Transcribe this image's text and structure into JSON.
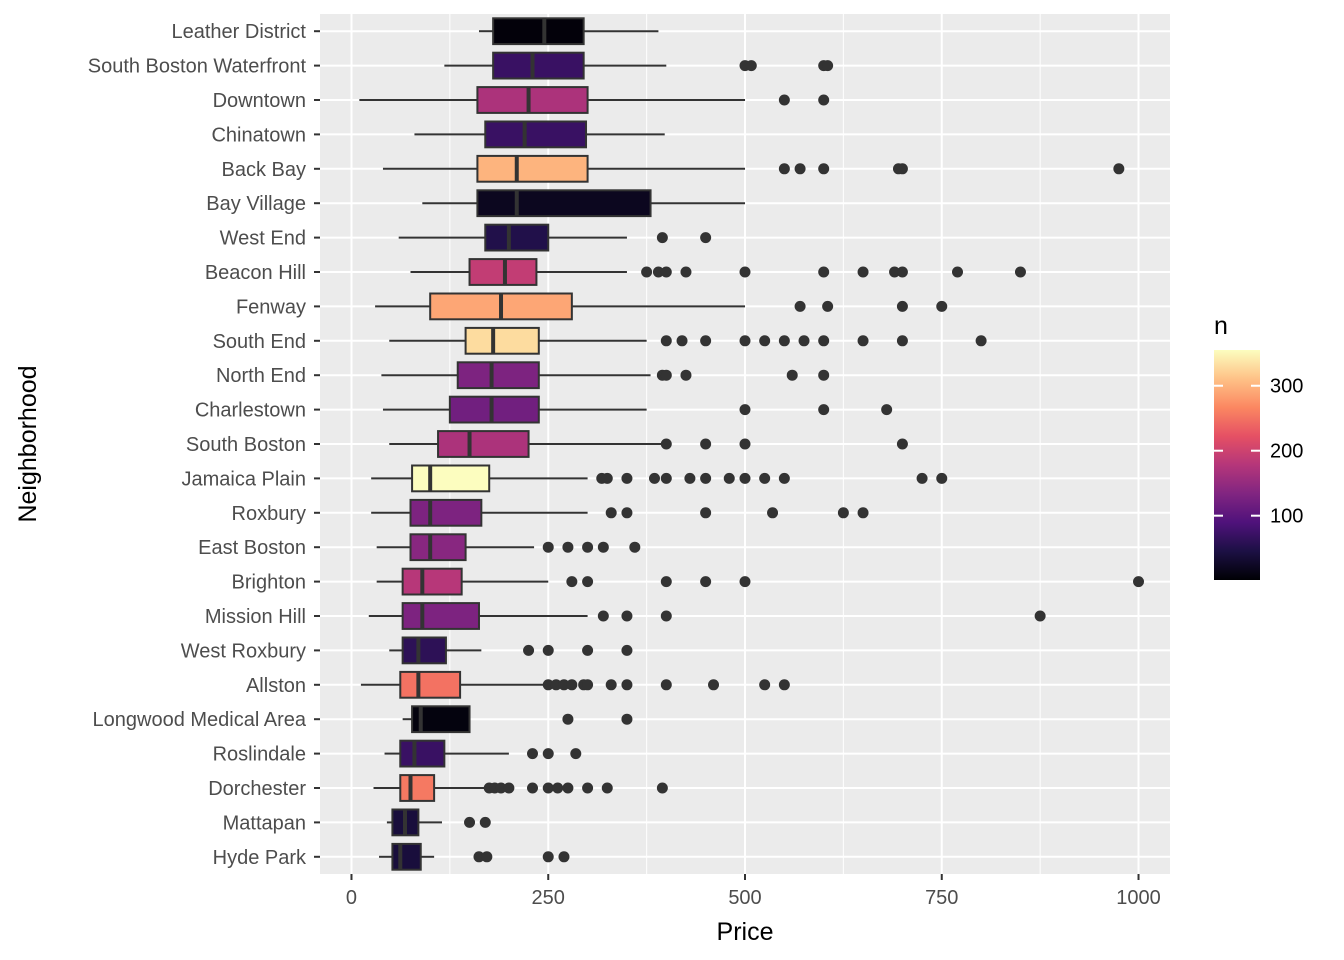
{
  "chart_data": {
    "type": "boxplot",
    "xlabel": "Price",
    "ylabel": "Neighborhood",
    "xlim": [
      -40,
      1040
    ],
    "x_ticks": [
      0,
      250,
      500,
      750,
      1000
    ],
    "x_tick_labels": [
      "0",
      "250",
      "500",
      "750",
      "1000"
    ],
    "grid": true,
    "legend": {
      "title": "n",
      "placement": "right",
      "min": 1,
      "max": 355,
      "ticks": [
        100,
        200,
        300
      ],
      "tick_labels": [
        "100",
        "200",
        "300"
      ],
      "colors": [
        "#000004",
        "#1c1044",
        "#4f127b",
        "#812581",
        "#b5367a",
        "#e55064",
        "#fb8761",
        "#fec287",
        "#fcfdbf"
      ]
    },
    "box_edge_color": "#333333",
    "outlier_color": "#333333",
    "categories": [
      "Leather District",
      "South Boston Waterfront",
      "Downtown",
      "Chinatown",
      "Back Bay",
      "Bay Village",
      "West End",
      "Beacon Hill",
      "Fenway",
      "South End",
      "North End",
      "Charlestown",
      "South Boston",
      "Jamaica Plain",
      "Roxbury",
      "East Boston",
      "Brighton",
      "Mission Hill",
      "West Roxbury",
      "Allston",
      "Longwood Medical Area",
      "Roslindale",
      "Dorchester",
      "Mattapan",
      "Hyde Park"
    ],
    "boxes": [
      {
        "name": "Leather District",
        "whisker_low": 162,
        "q1": 180,
        "median": 245,
        "q3": 295,
        "whisker_high": 390,
        "n": 5,
        "outliers": []
      },
      {
        "name": "South Boston Waterfront",
        "whisker_low": 118,
        "q1": 180,
        "median": 230,
        "q3": 295,
        "whisker_high": 400,
        "n": 70,
        "outliers": [
          500,
          508,
          600,
          605
        ]
      },
      {
        "name": "Downtown",
        "whisker_low": 10,
        "q1": 160,
        "median": 225,
        "q3": 300,
        "whisker_high": 500,
        "n": 170,
        "outliers": [
          550,
          600
        ]
      },
      {
        "name": "Chinatown",
        "whisker_low": 80,
        "q1": 170,
        "median": 220,
        "q3": 298,
        "whisker_high": 398,
        "n": 70,
        "outliers": []
      },
      {
        "name": "Back Bay",
        "whisker_low": 40,
        "q1": 160,
        "median": 210,
        "q3": 300,
        "whisker_high": 500,
        "n": 300,
        "outliers": [
          550,
          570,
          600,
          695,
          700,
          975
        ]
      },
      {
        "name": "Bay Village",
        "whisker_low": 90,
        "q1": 160,
        "median": 210,
        "q3": 380,
        "whisker_high": 500,
        "n": 20,
        "outliers": []
      },
      {
        "name": "West End",
        "whisker_low": 60,
        "q1": 170,
        "median": 200,
        "q3": 250,
        "whisker_high": 350,
        "n": 50,
        "outliers": [
          395,
          450
        ]
      },
      {
        "name": "Beacon Hill",
        "whisker_low": 75,
        "q1": 150,
        "median": 195,
        "q3": 235,
        "whisker_high": 350,
        "n": 190,
        "outliers": [
          375,
          390,
          400,
          425,
          500,
          600,
          650,
          690,
          700,
          770,
          850
        ]
      },
      {
        "name": "Fenway",
        "whisker_low": 30,
        "q1": 100,
        "median": 190,
        "q3": 280,
        "whisker_high": 500,
        "n": 290,
        "outliers": [
          570,
          605,
          700,
          750
        ]
      },
      {
        "name": "South End",
        "whisker_low": 48,
        "q1": 145,
        "median": 180,
        "q3": 238,
        "whisker_high": 375,
        "n": 330,
        "outliers": [
          400,
          420,
          450,
          500,
          525,
          550,
          575,
          600,
          650,
          700,
          800
        ]
      },
      {
        "name": "North End",
        "whisker_low": 38,
        "q1": 135,
        "median": 178,
        "q3": 238,
        "whisker_high": 380,
        "n": 130,
        "outliers": [
          395,
          400,
          425,
          560,
          600
        ]
      },
      {
        "name": "Charlestown",
        "whisker_low": 40,
        "q1": 125,
        "median": 178,
        "q3": 238,
        "whisker_high": 375,
        "n": 120,
        "outliers": [
          500,
          600,
          680
        ]
      },
      {
        "name": "South Boston",
        "whisker_low": 48,
        "q1": 110,
        "median": 150,
        "q3": 225,
        "whisker_high": 400,
        "n": 170,
        "outliers": [
          400,
          450,
          500,
          700
        ]
      },
      {
        "name": "Jamaica Plain",
        "whisker_low": 25,
        "q1": 77,
        "median": 100,
        "q3": 175,
        "whisker_high": 300,
        "n": 355,
        "outliers": [
          318,
          325,
          350,
          385,
          400,
          430,
          450,
          480,
          500,
          525,
          550,
          725,
          750
        ]
      },
      {
        "name": "Roxbury",
        "whisker_low": 25,
        "q1": 75,
        "median": 100,
        "q3": 165,
        "whisker_high": 300,
        "n": 130,
        "outliers": [
          330,
          350,
          450,
          535,
          625,
          650
        ]
      },
      {
        "name": "East Boston",
        "whisker_low": 32,
        "q1": 75,
        "median": 100,
        "q3": 145,
        "whisker_high": 232,
        "n": 140,
        "outliers": [
          250,
          275,
          300,
          320,
          360
        ]
      },
      {
        "name": "Brighton",
        "whisker_low": 32,
        "q1": 65,
        "median": 90,
        "q3": 140,
        "whisker_high": 250,
        "n": 180,
        "outliers": [
          280,
          300,
          400,
          450,
          500,
          1000
        ]
      },
      {
        "name": "Mission Hill",
        "whisker_low": 22,
        "q1": 65,
        "median": 90,
        "q3": 162,
        "whisker_high": 300,
        "n": 130,
        "outliers": [
          320,
          350,
          400,
          875
        ]
      },
      {
        "name": "West Roxbury",
        "whisker_low": 48,
        "q1": 65,
        "median": 85,
        "q3": 120,
        "whisker_high": 165,
        "n": 60,
        "outliers": [
          225,
          250,
          300,
          350
        ]
      },
      {
        "name": "Allston",
        "whisker_low": 12,
        "q1": 62,
        "median": 85,
        "q3": 138,
        "whisker_high": 245,
        "n": 250,
        "outliers": [
          250,
          260,
          270,
          280,
          295,
          300,
          330,
          350,
          400,
          460,
          525,
          550
        ]
      },
      {
        "name": "Longwood Medical Area",
        "whisker_low": 65,
        "q1": 77,
        "median": 88,
        "q3": 150,
        "whisker_high": 150,
        "n": 8,
        "outliers": [
          275,
          350
        ]
      },
      {
        "name": "Roslindale",
        "whisker_low": 42,
        "q1": 62,
        "median": 80,
        "q3": 118,
        "whisker_high": 200,
        "n": 70,
        "outliers": [
          230,
          250,
          285
        ]
      },
      {
        "name": "Dorchester",
        "whisker_low": 28,
        "q1": 62,
        "median": 75,
        "q3": 105,
        "whisker_high": 170,
        "n": 255,
        "outliers": [
          175,
          182,
          190,
          200,
          230,
          250,
          262,
          275,
          300,
          325,
          395
        ]
      },
      {
        "name": "Mattapan",
        "whisker_low": 45,
        "q1": 52,
        "median": 68,
        "q3": 85,
        "whisker_high": 115,
        "n": 40,
        "outliers": [
          150,
          170
        ]
      },
      {
        "name": "Hyde Park",
        "whisker_low": 35,
        "q1": 52,
        "median": 62,
        "q3": 88,
        "whisker_high": 105,
        "n": 40,
        "outliers": [
          162,
          172,
          250,
          270
        ]
      }
    ]
  }
}
